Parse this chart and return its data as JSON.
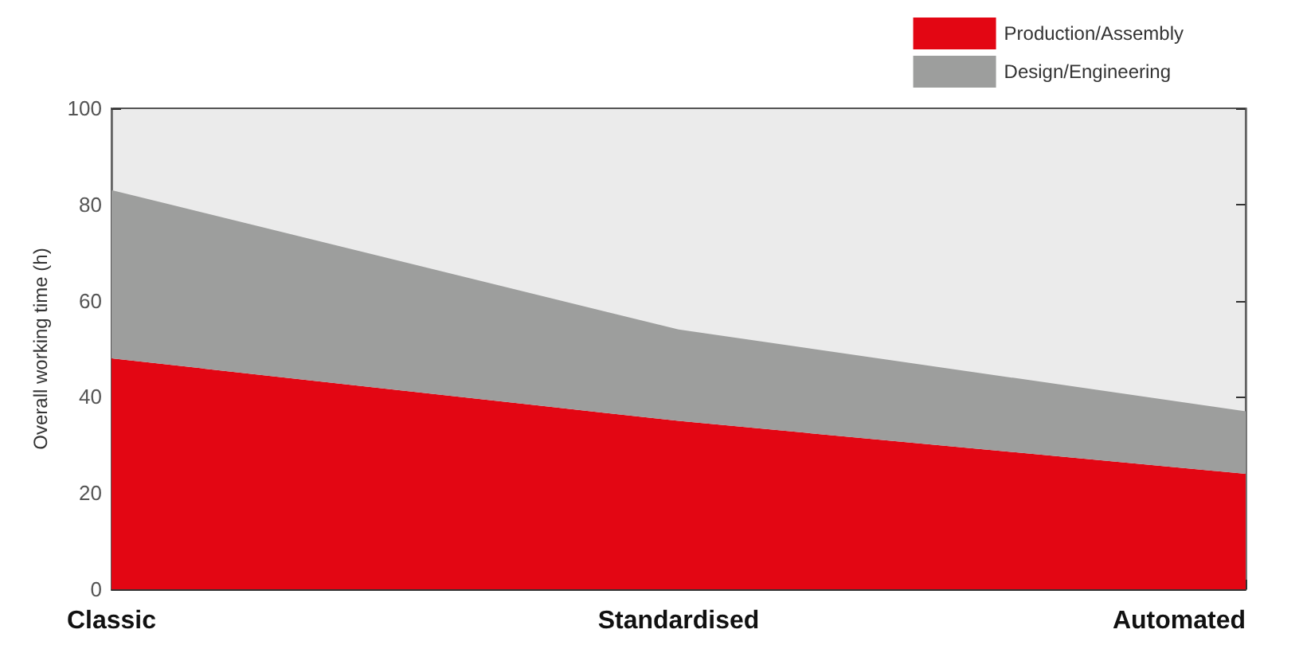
{
  "chart_data": {
    "type": "area",
    "ylabel": "Overall working time (h)",
    "categories": [
      "Classic",
      "Standardised",
      "Automated"
    ],
    "series": [
      {
        "name": "Production/Assembly",
        "color": "#e30613",
        "values": [
          48,
          35,
          24
        ]
      },
      {
        "name": "Design/Engineering",
        "color": "#9d9e9d",
        "values": [
          35,
          19,
          13
        ]
      }
    ],
    "stacked": true,
    "ylim": [
      0,
      100
    ],
    "yticks": [
      0,
      20,
      40,
      60,
      80,
      100
    ],
    "legend": "top right",
    "grid": false
  }
}
